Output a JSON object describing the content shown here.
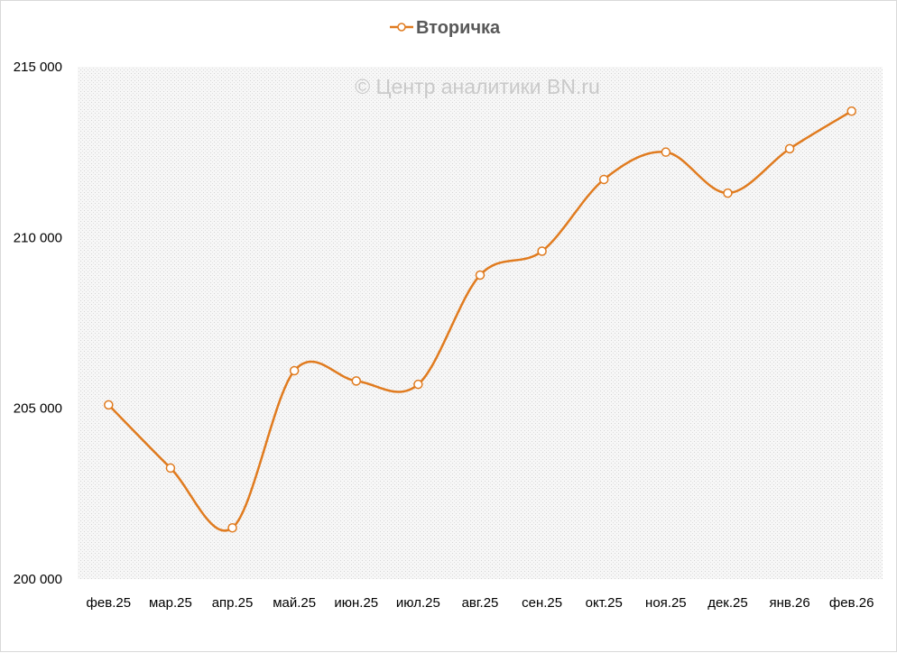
{
  "chart_data": {
    "type": "line",
    "title": "",
    "xlabel": "",
    "ylabel": "",
    "watermark": "© Центр аналитики BN.ru",
    "categories": [
      "фев.25",
      "мар.25",
      "апр.25",
      "май.25",
      "июн.25",
      "июл.25",
      "авг.25",
      "сен.25",
      "окт.25",
      "ноя.25",
      "дек.25",
      "янв.26",
      "фев.26"
    ],
    "series": [
      {
        "name": "Вторичка",
        "color": "#e07b1f",
        "values": [
          205100,
          203250,
          201500,
          206100,
          205800,
          205700,
          208900,
          209600,
          211700,
          212500,
          211300,
          212600,
          213700
        ]
      }
    ],
    "ylim": [
      200000,
      215000
    ],
    "yticks": [
      200000,
      205000,
      210000,
      215000
    ],
    "ytick_labels": [
      "200 000",
      "205 000",
      "210 000",
      "215 000"
    ],
    "legend_position": "top-center",
    "grid": false,
    "plot_background": "dotted-light-gray",
    "smooth": true
  }
}
